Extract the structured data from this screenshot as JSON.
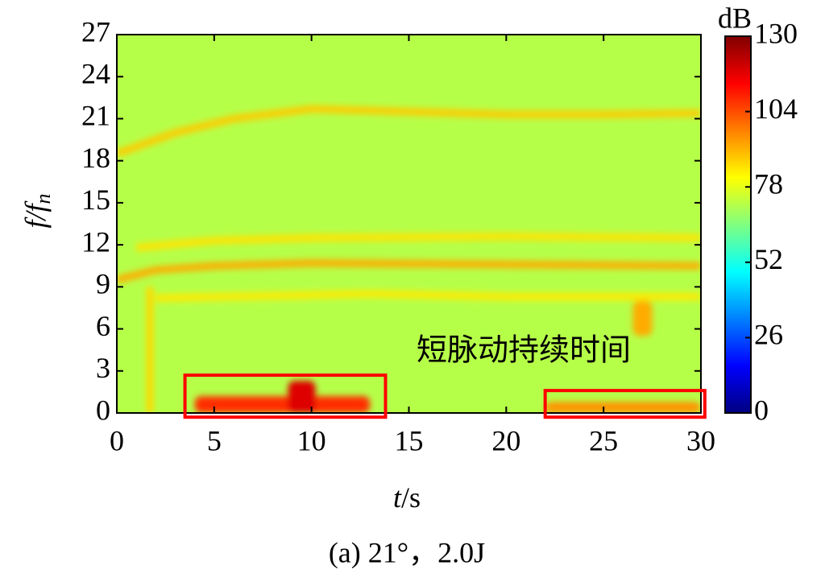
{
  "chart_data": {
    "type": "spectrogram",
    "xlabel_parts": [
      "t",
      "/s"
    ],
    "ylabel_parts": [
      "f/f",
      "n"
    ],
    "colorbar_title": "dB",
    "caption": "(a) 21°，2.0J",
    "annotation": "短脉动持续时间",
    "xlim": [
      0,
      30
    ],
    "xticks": [
      0,
      5,
      10,
      15,
      20,
      25,
      30
    ],
    "ylim": [
      0,
      27
    ],
    "yticks": [
      0,
      3,
      6,
      9,
      12,
      15,
      18,
      21,
      24,
      27
    ],
    "clim": [
      0,
      130
    ],
    "cticks": [
      0,
      26,
      52,
      78,
      104,
      130
    ],
    "colormap": "jet",
    "background_db": 72,
    "ridges": [
      {
        "db": 88,
        "x": [
          0,
          3,
          6,
          10,
          15,
          20,
          25,
          30
        ],
        "y": [
          18.5,
          20,
          21,
          21.7,
          21.5,
          21.3,
          21.3,
          21.4
        ]
      },
      {
        "db": 92,
        "x": [
          0,
          2,
          5,
          10,
          20,
          30
        ],
        "y": [
          9.5,
          10.2,
          10.5,
          10.7,
          10.6,
          10.5
        ]
      },
      {
        "db": 85,
        "x": [
          1,
          5,
          10,
          20,
          30
        ],
        "y": [
          11.8,
          12.3,
          12.5,
          12.6,
          12.5
        ]
      },
      {
        "db": 84,
        "x": [
          2,
          13,
          20,
          30
        ],
        "y": [
          8.2,
          8.5,
          8.3,
          8.3
        ]
      },
      {
        "db": 86,
        "x": [
          1.7,
          1.7
        ],
        "y": [
          0,
          9
        ]
      }
    ],
    "hotspots": [
      {
        "t": [
          4,
          13
        ],
        "f": [
          0,
          1.2
        ],
        "db": 108
      },
      {
        "t": [
          8.8,
          10.2
        ],
        "f": [
          0,
          2.3
        ],
        "db": 118
      },
      {
        "t": [
          26.5,
          27.5
        ],
        "f": [
          5.5,
          8
        ],
        "db": 92
      },
      {
        "t": [
          22,
          30
        ],
        "f": [
          0,
          0.8
        ],
        "db": 95
      }
    ],
    "highlight_boxes": [
      {
        "t": [
          3.5,
          13.8
        ],
        "f": [
          -0.3,
          2.7
        ]
      },
      {
        "t": [
          22,
          30.2
        ],
        "f": [
          -0.3,
          1.6
        ]
      }
    ],
    "highlight_color": "#ff0000"
  }
}
